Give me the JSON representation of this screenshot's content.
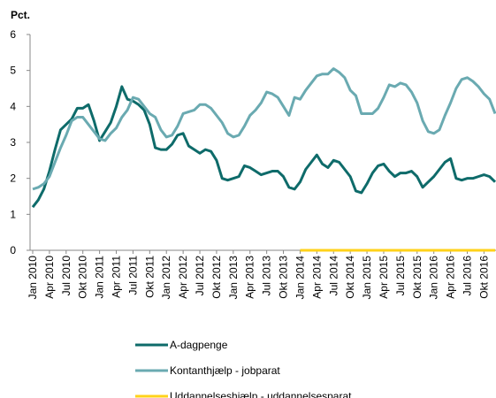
{
  "chart_data": {
    "type": "line",
    "y_label": "Pct.",
    "categories": [
      "Jan 2010",
      null,
      null,
      "Apr 2010",
      null,
      null,
      "Jul 2010",
      null,
      null,
      "Okt 2010",
      null,
      null,
      "Jan 2011",
      null,
      null,
      "Apr 2011",
      null,
      null,
      "Jul 2011",
      null,
      null,
      "Okt 2011",
      null,
      null,
      "Jan 2012",
      null,
      null,
      "Apr 2012",
      null,
      null,
      "Jul 2012",
      null,
      null,
      "Okt 2012",
      null,
      null,
      "Jan 2013",
      null,
      null,
      "Apr 2013",
      null,
      null,
      "Jul 2013",
      null,
      null,
      "Okt 2013",
      null,
      null,
      "Jan 2014",
      null,
      null,
      "Apr 2014",
      null,
      null,
      "Jul 2014",
      null,
      null,
      "Okt 2014",
      null,
      null,
      "Jan 2015",
      null,
      null,
      "Apr 2015",
      null,
      null,
      "Jul 2015",
      null,
      null,
      "Okt 2015",
      null,
      null,
      "Jan 2016",
      null,
      null,
      "Apr 2016",
      null,
      null,
      "Jul 2016",
      null,
      null,
      "Okt 2016",
      null,
      null
    ],
    "series": [
      {
        "name": "A-dagpenge",
        "color": "#0e6b6a",
        "values": [
          1.2,
          1.4,
          1.7,
          2.2,
          2.8,
          3.35,
          3.5,
          3.65,
          3.95,
          3.95,
          4.05,
          3.6,
          3.05,
          3.3,
          3.55,
          4.0,
          4.55,
          4.2,
          4.15,
          4.05,
          3.9,
          3.5,
          2.85,
          2.8,
          2.8,
          2.95,
          3.2,
          3.25,
          2.9,
          2.8,
          2.7,
          2.8,
          2.75,
          2.5,
          2.0,
          1.95,
          2.0,
          2.05,
          2.35,
          2.3,
          2.2,
          2.1,
          2.15,
          2.2,
          2.2,
          2.05,
          1.75,
          1.7,
          1.9,
          2.25,
          2.45,
          2.65,
          2.4,
          2.3,
          2.5,
          2.45,
          2.25,
          2.05,
          1.65,
          1.6,
          1.85,
          2.15,
          2.35,
          2.4,
          2.2,
          2.05,
          2.15,
          2.15,
          2.2,
          2.05,
          1.75,
          1.9,
          2.05,
          2.25,
          2.45,
          2.55,
          2.0,
          1.95,
          2.0,
          2.0,
          2.05,
          2.1,
          2.05,
          1.9
        ]
      },
      {
        "name": "Kontanthjælp - jobparat",
        "color": "#6aaab1",
        "values": [
          1.7,
          1.75,
          1.85,
          2.05,
          2.45,
          2.85,
          3.2,
          3.6,
          3.7,
          3.7,
          3.5,
          3.3,
          3.1,
          3.05,
          3.25,
          3.4,
          3.7,
          3.9,
          4.25,
          4.2,
          4.0,
          3.8,
          3.7,
          3.35,
          3.15,
          3.2,
          3.45,
          3.8,
          3.85,
          3.9,
          4.05,
          4.05,
          3.95,
          3.75,
          3.55,
          3.25,
          3.15,
          3.2,
          3.45,
          3.75,
          3.9,
          4.1,
          4.4,
          4.35,
          4.25,
          4.0,
          3.75,
          4.25,
          4.2,
          4.45,
          4.65,
          4.85,
          4.9,
          4.9,
          5.05,
          4.95,
          4.8,
          4.45,
          4.3,
          3.8,
          3.8,
          3.8,
          3.95,
          4.25,
          4.6,
          4.55,
          4.65,
          4.6,
          4.4,
          4.1,
          3.6,
          3.3,
          3.25,
          3.35,
          3.75,
          4.1,
          4.5,
          4.75,
          4.8,
          4.7,
          4.55,
          4.35,
          4.2,
          3.8
        ]
      },
      {
        "name": "Uddannelseshjælp - uddannelsesparat",
        "color": "#ffd21a",
        "values": [
          null,
          null,
          null,
          null,
          null,
          null,
          null,
          null,
          null,
          null,
          null,
          null,
          null,
          null,
          null,
          null,
          null,
          null,
          null,
          null,
          null,
          null,
          null,
          null,
          null,
          null,
          null,
          null,
          null,
          null,
          null,
          null,
          null,
          null,
          null,
          null,
          null,
          null,
          null,
          null,
          null,
          null,
          null,
          null,
          null,
          null,
          null,
          null,
          0,
          0,
          0,
          0,
          0,
          0,
          0,
          0,
          0,
          0,
          0,
          0,
          0,
          0,
          0,
          0,
          0,
          0,
          0,
          0,
          0,
          0,
          0,
          0,
          0,
          0,
          0,
          0,
          0,
          0,
          0,
          0,
          0,
          0,
          0,
          0
        ]
      }
    ],
    "ylim": [
      0,
      6
    ],
    "yticks": [
      0,
      1,
      2,
      3,
      4,
      5,
      6
    ],
    "grid": false,
    "legend": "bottom"
  }
}
